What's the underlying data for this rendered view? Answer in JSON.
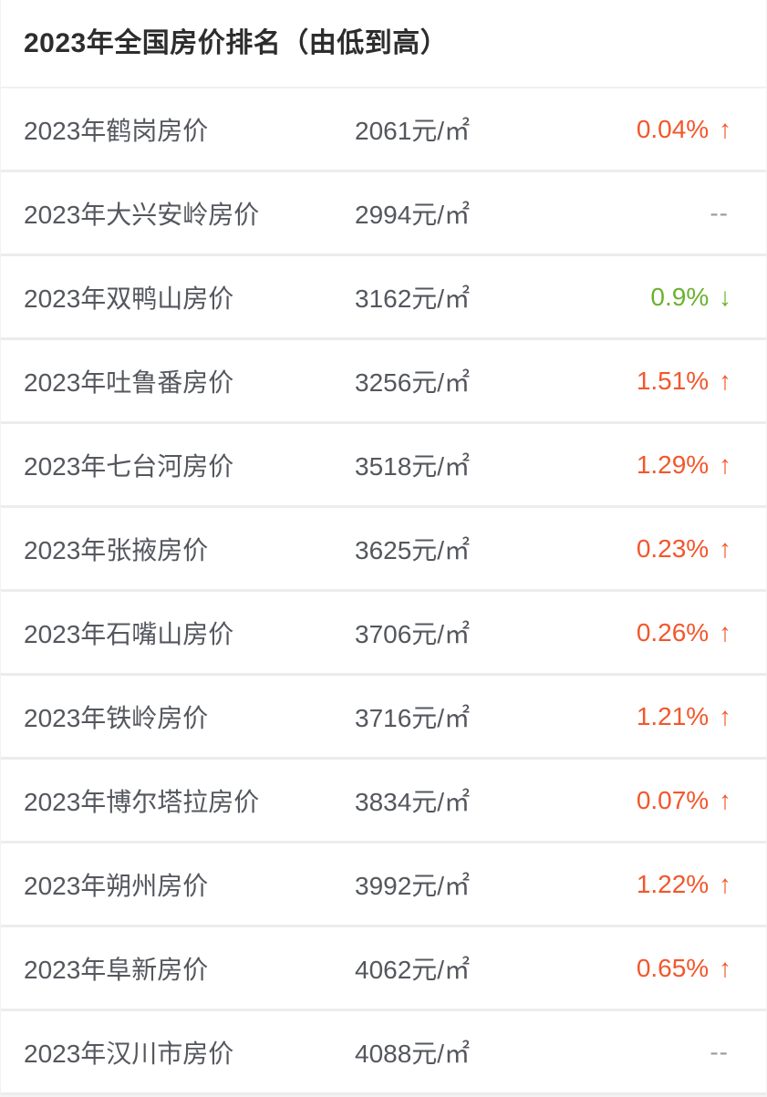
{
  "title": "2023年全国房价排名（由低到高）",
  "colors": {
    "up": "#f2572c",
    "down": "#69b32d",
    "neutral": "#9c9c9c"
  },
  "arrows": {
    "up": "↑",
    "down": "↓"
  },
  "rows": [
    {
      "name": "2023年鹤岗房价",
      "price": "2061元/㎡",
      "change": "0.04%",
      "direction": "up"
    },
    {
      "name": "2023年大兴安岭房价",
      "price": "2994元/㎡",
      "change": "--",
      "direction": "none"
    },
    {
      "name": "2023年双鸭山房价",
      "price": "3162元/㎡",
      "change": "0.9%",
      "direction": "down"
    },
    {
      "name": "2023年吐鲁番房价",
      "price": "3256元/㎡",
      "change": "1.51%",
      "direction": "up"
    },
    {
      "name": "2023年七台河房价",
      "price": "3518元/㎡",
      "change": "1.29%",
      "direction": "up"
    },
    {
      "name": "2023年张掖房价",
      "price": "3625元/㎡",
      "change": "0.23%",
      "direction": "up"
    },
    {
      "name": "2023年石嘴山房价",
      "price": "3706元/㎡",
      "change": "0.26%",
      "direction": "up"
    },
    {
      "name": "2023年铁岭房价",
      "price": "3716元/㎡",
      "change": "1.21%",
      "direction": "up"
    },
    {
      "name": "2023年博尔塔拉房价",
      "price": "3834元/㎡",
      "change": "0.07%",
      "direction": "up"
    },
    {
      "name": "2023年朔州房价",
      "price": "3992元/㎡",
      "change": "1.22%",
      "direction": "up"
    },
    {
      "name": "2023年阜新房价",
      "price": "4062元/㎡",
      "change": "0.65%",
      "direction": "up"
    },
    {
      "name": "2023年汉川市房价",
      "price": "4088元/㎡",
      "change": "--",
      "direction": "none"
    }
  ]
}
